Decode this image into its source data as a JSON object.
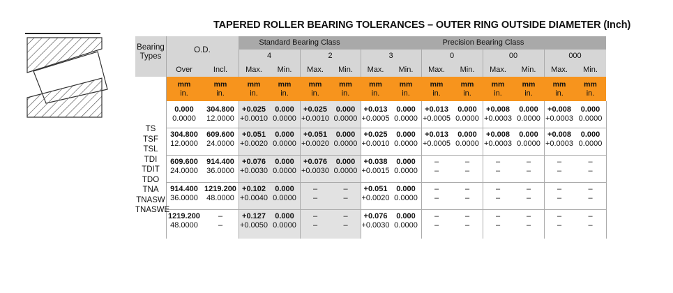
{
  "title": "TAPERED ROLLER BEARING TOLERANCES – OUTER RING OUTSIDE DIAMETER (Inch)",
  "header": {
    "bearing_types": "Bearing Types",
    "od": "O.D.",
    "standard_class": "Standard Bearing Class",
    "precision_class": "Precision Bearing Class",
    "classes": [
      "4",
      "2",
      "3",
      "0",
      "00",
      "000"
    ],
    "over": "Over",
    "incl": "Incl.",
    "max": "Max.",
    "min": "Min.",
    "unit_mm": "mm",
    "unit_in": "in."
  },
  "bearing_types": [
    "TS",
    "TSF",
    "TSL",
    "TDI",
    "TDIT",
    "TDO",
    "TNA",
    "TNASW",
    "TNASWE"
  ],
  "rows": [
    [
      [
        "0.000",
        "0.0000"
      ],
      [
        "304.800",
        "12.0000"
      ],
      [
        "+0.025",
        "+0.0010"
      ],
      [
        "0.000",
        "0.0000"
      ],
      [
        "+0.025",
        "+0.0010"
      ],
      [
        "0.000",
        "0.0000"
      ],
      [
        "+0.013",
        "+0.0005"
      ],
      [
        "0.000",
        "0.0000"
      ],
      [
        "+0.013",
        "+0.0005"
      ],
      [
        "0.000",
        "0.0000"
      ],
      [
        "+0.008",
        "+0.0003"
      ],
      [
        "0.000",
        "0.0000"
      ],
      [
        "+0.008",
        "+0.0003"
      ],
      [
        "0.000",
        "0.0000"
      ]
    ],
    [
      [
        "304.800",
        "12.0000"
      ],
      [
        "609.600",
        "24.0000"
      ],
      [
        "+0.051",
        "+0.0020"
      ],
      [
        "0.000",
        "0.0000"
      ],
      [
        "+0.051",
        "+0.0020"
      ],
      [
        "0.000",
        "0.0000"
      ],
      [
        "+0.025",
        "+0.0010"
      ],
      [
        "0.000",
        "0.0000"
      ],
      [
        "+0.013",
        "+0.0005"
      ],
      [
        "0.000",
        "0.0000"
      ],
      [
        "+0.008",
        "+0.0003"
      ],
      [
        "0.000",
        "0.0000"
      ],
      [
        "+0.008",
        "+0.0003"
      ],
      [
        "0.000",
        "0.0000"
      ]
    ],
    [
      [
        "609.600",
        "24.0000"
      ],
      [
        "914.400",
        "36.0000"
      ],
      [
        "+0.076",
        "+0.0030"
      ],
      [
        "0.000",
        "0.0000"
      ],
      [
        "+0.076",
        "+0.0030"
      ],
      [
        "0.000",
        "0.0000"
      ],
      [
        "+0.038",
        "+0.0015"
      ],
      [
        "0.000",
        "0.0000"
      ],
      [
        "–",
        "–"
      ],
      [
        "–",
        "–"
      ],
      [
        "–",
        "–"
      ],
      [
        "–",
        "–"
      ],
      [
        "–",
        "–"
      ],
      [
        "–",
        "–"
      ]
    ],
    [
      [
        "914.400",
        "36.0000"
      ],
      [
        "1219.200",
        "48.0000"
      ],
      [
        "+0.102",
        "+0.0040"
      ],
      [
        "0.000",
        "0.0000"
      ],
      [
        "–",
        "–"
      ],
      [
        "–",
        "–"
      ],
      [
        "+0.051",
        "+0.0020"
      ],
      [
        "0.000",
        "0.0000"
      ],
      [
        "–",
        "–"
      ],
      [
        "–",
        "–"
      ],
      [
        "–",
        "–"
      ],
      [
        "–",
        "–"
      ],
      [
        "–",
        "–"
      ],
      [
        "–",
        "–"
      ]
    ],
    [
      [
        "1219.200",
        "48.0000"
      ],
      [
        "–",
        "–"
      ],
      [
        "+0.127",
        "+0.0050"
      ],
      [
        "0.000",
        "0.0000"
      ],
      [
        "–",
        "–"
      ],
      [
        "–",
        "–"
      ],
      [
        "+0.076",
        "+0.0030"
      ],
      [
        "0.000",
        "0.0000"
      ],
      [
        "–",
        "–"
      ],
      [
        "–",
        "–"
      ],
      [
        "–",
        "–"
      ],
      [
        "–",
        "–"
      ],
      [
        "–",
        "–"
      ],
      [
        "–",
        "–"
      ]
    ]
  ],
  "colors": {
    "orange": "#f7941d",
    "dark_header": "#a9a9a9",
    "light_header": "#d6d6d6",
    "shade": "#e2e2e2"
  }
}
